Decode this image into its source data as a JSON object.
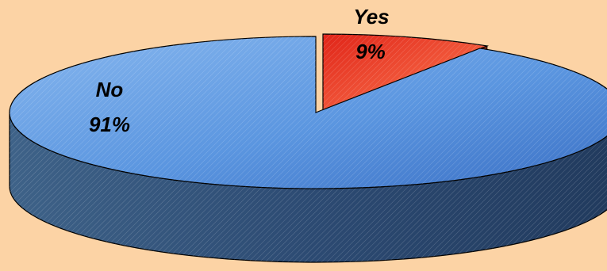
{
  "chart_data": {
    "type": "pie",
    "style": "3d-exploded",
    "slices": [
      {
        "label": "Yes",
        "value": 9,
        "value_label": "9%",
        "color": "#f04a32",
        "exploded": true
      },
      {
        "label": "No",
        "value": 91,
        "value_label": "91%",
        "color": "#5b96e0",
        "exploded": false
      }
    ],
    "colors": {
      "background": "#fcd3a5",
      "outline": "#000000"
    }
  }
}
